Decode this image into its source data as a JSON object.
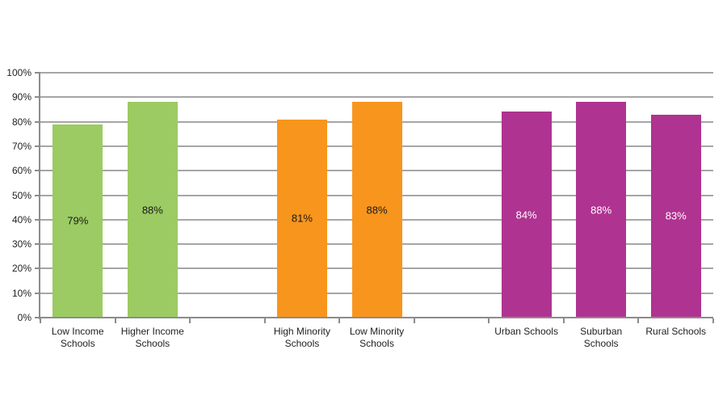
{
  "chart_data": {
    "type": "bar",
    "title": "",
    "xlabel": "",
    "ylabel": "",
    "ylim": [
      0,
      100
    ],
    "grid": true,
    "legend": false,
    "y_axis": {
      "ticks": [
        "0%",
        "10%",
        "20%",
        "30%",
        "40%",
        "50%",
        "60%",
        "70%",
        "80%",
        "90%",
        "100%"
      ]
    },
    "colors": {
      "gridline": "#A6A6A6",
      "axis": "#8C8C8C",
      "text": "#1f1f1f"
    },
    "groups": [
      {
        "name": "income",
        "color": "#9BCB62",
        "value_label_color": "#1a1a1a",
        "bars": [
          {
            "category": "Low Income Schools",
            "value": 79,
            "label": "79%"
          },
          {
            "category": "Higher Income Schools",
            "value": 88,
            "label": "88%"
          }
        ]
      },
      {
        "name": "minority",
        "color": "#F8951D",
        "value_label_color": "#1a1a1a",
        "bars": [
          {
            "category": "High Minority Schools",
            "value": 81,
            "label": "81%"
          },
          {
            "category": "Low Minority Schools",
            "value": 88,
            "label": "88%"
          }
        ]
      },
      {
        "name": "locale",
        "color": "#AF3390",
        "value_label_color": "#ffffff",
        "bars": [
          {
            "category": "Urban Schools",
            "value": 84,
            "label": "84%"
          },
          {
            "category": "Suburban Schools",
            "value": 88,
            "label": "88%"
          },
          {
            "category": "Rural Schools",
            "value": 83,
            "label": "83%"
          }
        ]
      }
    ]
  }
}
